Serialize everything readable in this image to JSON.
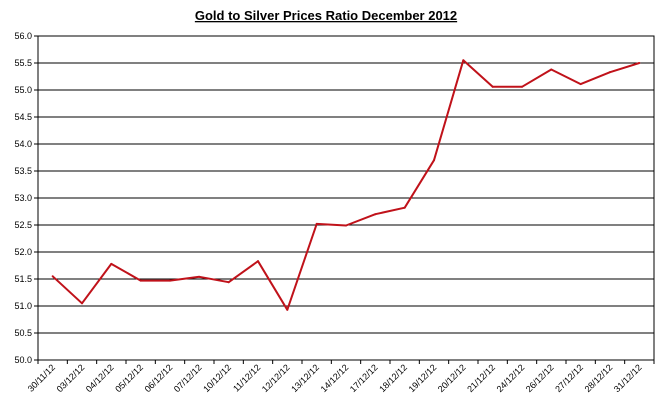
{
  "chart_data": {
    "type": "line",
    "title": "Gold to Silver Prices Ratio December 2012",
    "xlabel": "",
    "ylabel": "",
    "categories": [
      "30/11/12",
      "03/12/12",
      "04/12/12",
      "05/12/12",
      "06/12/12",
      "07/12/12",
      "10/12/12",
      "11/12/12",
      "12/12/12",
      "13/12/12",
      "14/12/12",
      "17/12/12",
      "18/12/12",
      "19/12/12",
      "20/12/12",
      "21/12/12",
      "24/12/12",
      "26/12/12",
      "27/12/12",
      "28/12/12",
      "31/12/12"
    ],
    "series": [
      {
        "name": "",
        "color": "#c0121a",
        "values": [
          51.55,
          51.05,
          51.78,
          51.47,
          51.47,
          51.54,
          51.44,
          51.83,
          50.93,
          52.52,
          52.49,
          52.7,
          52.82,
          53.7,
          55.55,
          55.06,
          55.06,
          55.38,
          55.11,
          55.33,
          55.5
        ]
      }
    ],
    "ylim": [
      50.0,
      56.0
    ],
    "yticks": [
      "50.0",
      "50.5",
      "51.0",
      "51.5",
      "52.0",
      "52.5",
      "53.0",
      "53.5",
      "54.0",
      "54.5",
      "55.0",
      "55.5",
      "56.0"
    ],
    "grid": true,
    "legend": "none"
  }
}
